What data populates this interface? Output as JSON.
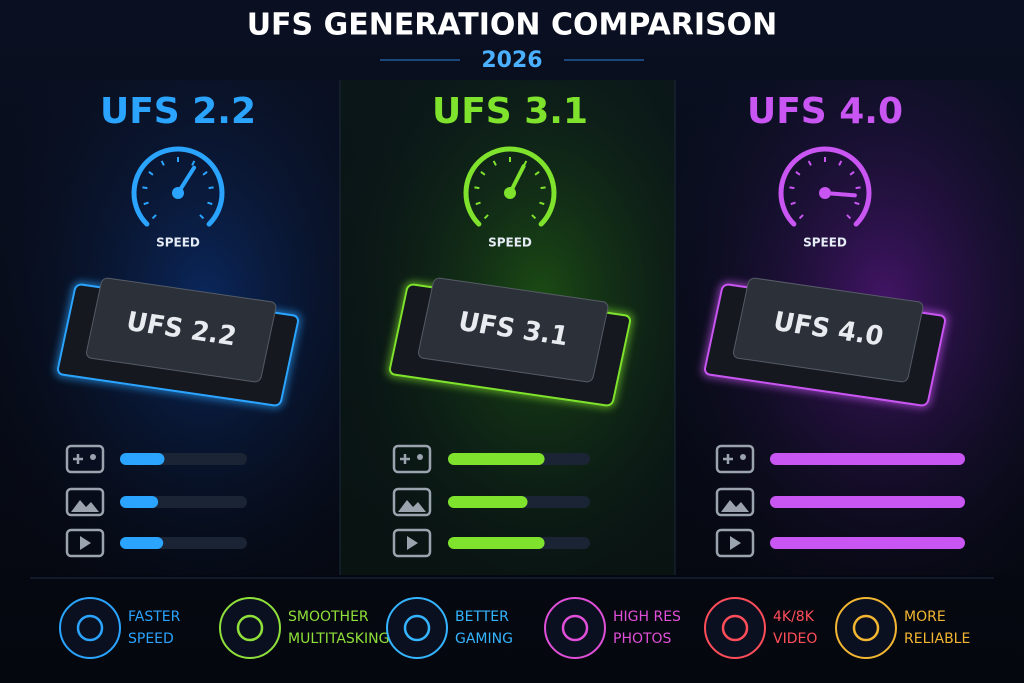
{
  "header": {
    "title": "UFS GENERATION COMPARISON",
    "year": "2026"
  },
  "columns": [
    {
      "name": "UFS 2.2",
      "chip": "UFS 2.2",
      "speed_label": "SPEED",
      "color": "#2aa4ff",
      "speed": 62,
      "bars": [
        35,
        30,
        34
      ]
    },
    {
      "name": "UFS 3.1",
      "chip": "UFS 3.1",
      "speed_label": "SPEED",
      "color": "#7fe22c",
      "speed": 60,
      "bars": [
        68,
        56,
        68
      ]
    },
    {
      "name": "UFS 4.0",
      "chip": "UFS 4.0",
      "speed_label": "SPEED",
      "color": "#c955f2",
      "speed": 85,
      "bars": [
        100,
        100,
        100
      ]
    }
  ],
  "features": [
    {
      "lines": [
        "FASTER",
        "SPEED"
      ],
      "color": "#2aa4ff"
    },
    {
      "lines": [
        "SMOOTHER",
        "MULTITASKING"
      ],
      "color": "#8fe03a"
    },
    {
      "lines": [
        "BETTER",
        "GAMING"
      ],
      "color": "#35b4ff"
    },
    {
      "lines": [
        "HIGH RES",
        "PHOTOS"
      ],
      "color": "#e04fd8"
    },
    {
      "lines": [
        "4K/8K",
        "VIDEO"
      ],
      "color": "#ff4d5a"
    },
    {
      "lines": [
        "MORE",
        "RELIABLE"
      ],
      "color": "#f2b632"
    }
  ]
}
